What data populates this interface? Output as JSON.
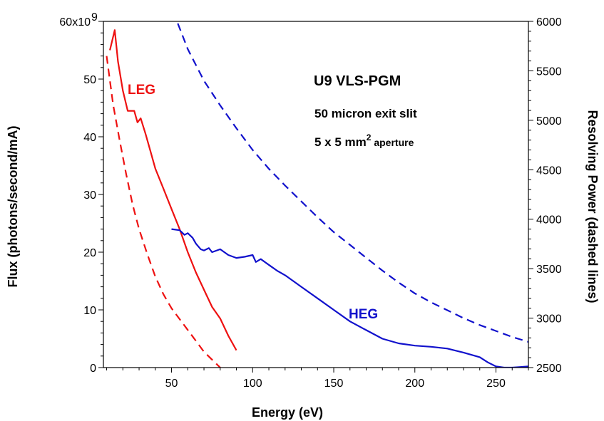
{
  "chart_data": {
    "type": "line",
    "xlabel": "Energy (eV)",
    "ylabel": "Flux (photons/second/mA)",
    "y2label": "Resolving Power (dashed lines)",
    "xlim": [
      8,
      270
    ],
    "ylim": [
      0,
      60
    ],
    "y2lim": [
      2500,
      6000
    ],
    "x_ticks": [
      50,
      100,
      150,
      200,
      250
    ],
    "y_ticks": [
      0,
      10,
      20,
      30,
      40,
      50,
      60
    ],
    "y_tick_labels": [
      "0",
      "10",
      "20",
      "30",
      "40",
      "50",
      "60x10"
    ],
    "y_tick_exponent": "9",
    "y2_ticks": [
      2500,
      3000,
      3500,
      4000,
      4500,
      5000,
      5500,
      6000
    ],
    "grid": false,
    "annotations": {
      "title": "U9 VLS-PGM",
      "slit": "50 micron exit slit",
      "aperture_prefix": "5 x 5 mm",
      "aperture_sup": "2",
      "aperture_suffix": " aperture"
    },
    "colors": {
      "LEG": "#ee1111",
      "HEG": "#1111cc"
    },
    "series": [
      {
        "name": "LEG",
        "axis": "left",
        "style": "solid",
        "color": "#ee1111",
        "x": [
          12,
          15,
          17,
          20,
          23,
          27,
          29,
          31,
          34,
          37,
          40,
          45,
          50,
          55,
          60,
          65,
          70,
          75,
          80,
          85,
          90
        ],
        "y": [
          55,
          58.5,
          53,
          48,
          44.5,
          44.5,
          42.5,
          43.2,
          40.5,
          37.5,
          34.5,
          31,
          27.5,
          24,
          20,
          16.5,
          13.5,
          10.5,
          8.5,
          5.5,
          3
        ]
      },
      {
        "name": "LEG",
        "axis": "right",
        "style": "dashed",
        "color": "#ee1111",
        "x": [
          10,
          14,
          18,
          22,
          26,
          30,
          35,
          40,
          45,
          50,
          55,
          60,
          65,
          70,
          75,
          80
        ],
        "y": [
          5650,
          5160,
          4800,
          4460,
          4150,
          3900,
          3650,
          3420,
          3240,
          3100,
          2990,
          2880,
          2770,
          2660,
          2580,
          2500
        ]
      },
      {
        "name": "HEG",
        "axis": "left",
        "style": "solid",
        "color": "#1111cc",
        "x": [
          50,
          55,
          58,
          60,
          63,
          65,
          68,
          70,
          73,
          75,
          80,
          85,
          90,
          95,
          100,
          102,
          105,
          108,
          110,
          115,
          120,
          125,
          130,
          140,
          150,
          160,
          170,
          180,
          190,
          200,
          210,
          220,
          230,
          240,
          245,
          250,
          255,
          260,
          265,
          270
        ],
        "y": [
          24,
          23.8,
          23,
          23.3,
          22.5,
          21.5,
          20.5,
          20.3,
          20.7,
          20,
          20.5,
          19.5,
          19,
          19.2,
          19.5,
          18.3,
          18.8,
          18.2,
          17.8,
          16.8,
          16,
          15,
          14,
          12,
          10,
          8,
          6.5,
          5,
          4.2,
          3.8,
          3.6,
          3.3,
          2.6,
          1.8,
          0.9,
          0.2,
          0,
          0,
          0.1,
          0.2
        ]
      },
      {
        "name": "HEG",
        "axis": "right",
        "style": "dashed",
        "color": "#1111cc",
        "x": [
          51,
          60,
          70,
          80,
          90,
          100,
          110,
          120,
          130,
          140,
          150,
          160,
          170,
          180,
          190,
          200,
          210,
          220,
          230,
          240,
          250,
          260,
          270
        ],
        "y": [
          6100,
          5720,
          5400,
          5150,
          4920,
          4700,
          4510,
          4340,
          4180,
          4020,
          3870,
          3740,
          3610,
          3480,
          3360,
          3250,
          3160,
          3080,
          3000,
          2930,
          2870,
          2810,
          2760
        ]
      }
    ]
  }
}
